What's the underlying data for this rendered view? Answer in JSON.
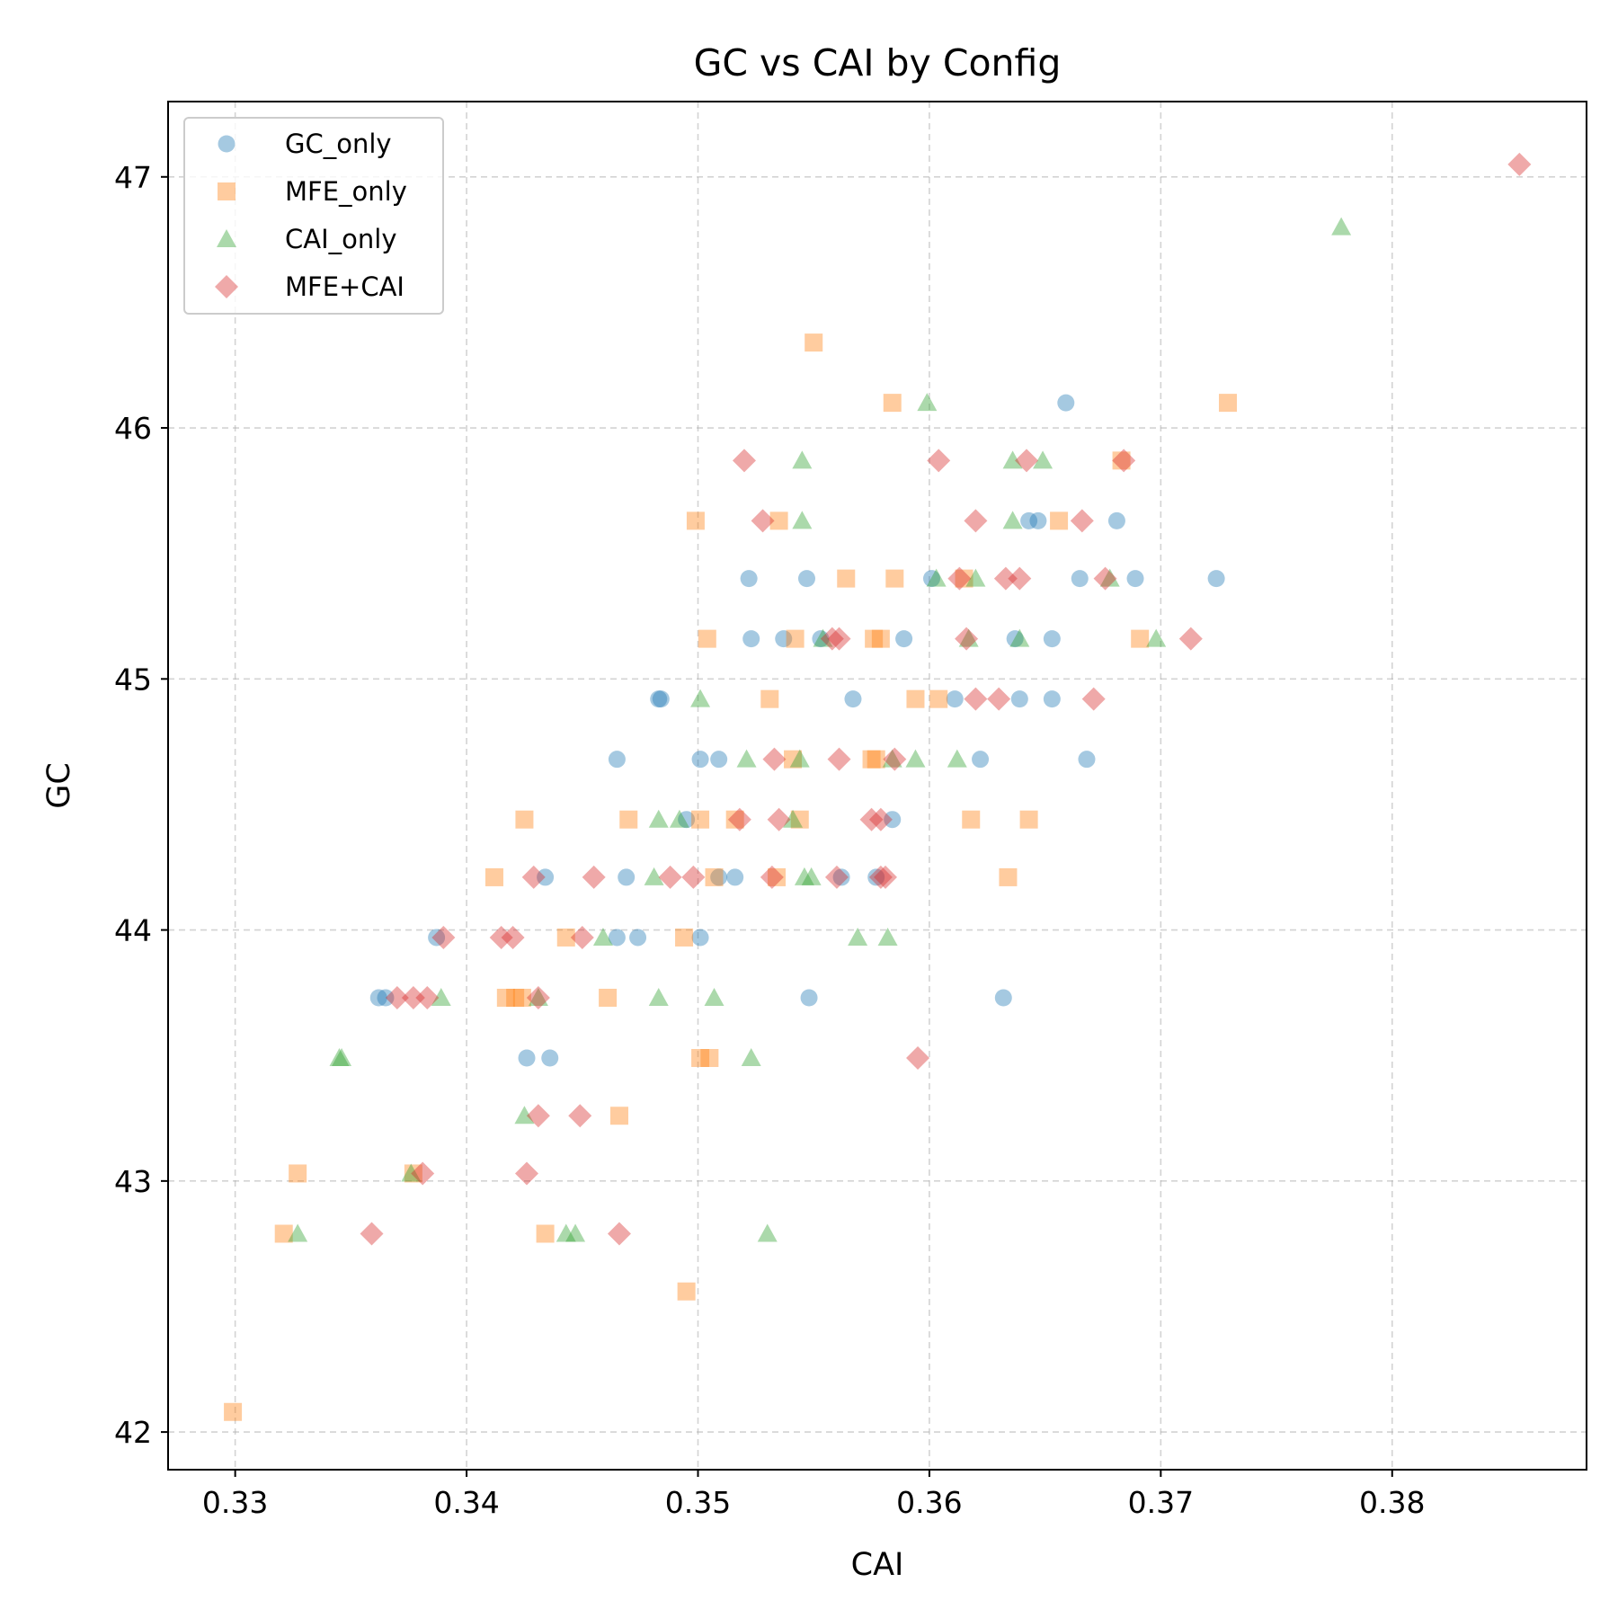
{
  "chart_data": {
    "type": "scatter",
    "title": "GC vs CAI by Config",
    "xlabel": "CAI",
    "ylabel": "GC",
    "xlim": [
      0.3271,
      0.3884
    ],
    "ylim": [
      41.85,
      47.3
    ],
    "xticks": [
      0.33,
      0.34,
      0.35,
      0.36,
      0.37,
      0.38
    ],
    "xtick_labels": [
      "0.33",
      "0.34",
      "0.35",
      "0.36",
      "0.37",
      "0.38"
    ],
    "yticks": [
      42,
      43,
      44,
      45,
      46,
      47
    ],
    "ytick_labels": [
      "42",
      "43",
      "44",
      "45",
      "46",
      "47"
    ],
    "grid": true,
    "legend_position": "top-left",
    "series": [
      {
        "name": "GC_only",
        "marker": "circle",
        "color": "#1f77b4",
        "points": [
          [
            0.3362,
            43.73
          ],
          [
            0.3365,
            43.73
          ],
          [
            0.3387,
            43.97
          ],
          [
            0.3426,
            43.49
          ],
          [
            0.3436,
            43.49
          ],
          [
            0.3434,
            44.21
          ],
          [
            0.3465,
            43.97
          ],
          [
            0.3474,
            43.97
          ],
          [
            0.3469,
            44.21
          ],
          [
            0.3465,
            44.68
          ],
          [
            0.3483,
            44.92
          ],
          [
            0.3484,
            44.92
          ],
          [
            0.3495,
            44.44
          ],
          [
            0.3501,
            43.97
          ],
          [
            0.3501,
            44.68
          ],
          [
            0.3509,
            44.68
          ],
          [
            0.3509,
            44.21
          ],
          [
            0.3516,
            44.21
          ],
          [
            0.3522,
            45.4
          ],
          [
            0.3523,
            45.16
          ],
          [
            0.3537,
            45.16
          ],
          [
            0.3547,
            45.4
          ],
          [
            0.3548,
            43.73
          ],
          [
            0.3553,
            45.16
          ],
          [
            0.3562,
            44.21
          ],
          [
            0.3567,
            44.92
          ],
          [
            0.3577,
            44.21
          ],
          [
            0.3584,
            44.44
          ],
          [
            0.3589,
            45.16
          ],
          [
            0.3601,
            45.4
          ],
          [
            0.3611,
            44.92
          ],
          [
            0.3622,
            44.68
          ],
          [
            0.3632,
            43.73
          ],
          [
            0.3637,
            45.16
          ],
          [
            0.3639,
            44.92
          ],
          [
            0.3643,
            45.63
          ],
          [
            0.3647,
            45.63
          ],
          [
            0.3653,
            45.16
          ],
          [
            0.3653,
            44.92
          ],
          [
            0.3659,
            46.1
          ],
          [
            0.3665,
            45.4
          ],
          [
            0.3668,
            44.68
          ],
          [
            0.3681,
            45.63
          ],
          [
            0.3689,
            45.4
          ],
          [
            0.3724,
            45.4
          ]
        ]
      },
      {
        "name": "MFE_only",
        "marker": "square",
        "color": "#ff7f0e",
        "points": [
          [
            0.3299,
            42.08
          ],
          [
            0.3321,
            42.79
          ],
          [
            0.3327,
            43.03
          ],
          [
            0.3377,
            43.03
          ],
          [
            0.3412,
            44.21
          ],
          [
            0.3417,
            43.73
          ],
          [
            0.3421,
            43.73
          ],
          [
            0.3424,
            43.73
          ],
          [
            0.3425,
            44.44
          ],
          [
            0.3434,
            42.79
          ],
          [
            0.3443,
            43.97
          ],
          [
            0.3461,
            43.73
          ],
          [
            0.3466,
            43.26
          ],
          [
            0.347,
            44.44
          ],
          [
            0.3495,
            42.56
          ],
          [
            0.3494,
            43.97
          ],
          [
            0.3499,
            45.63
          ],
          [
            0.3501,
            44.44
          ],
          [
            0.3501,
            43.49
          ],
          [
            0.3505,
            43.49
          ],
          [
            0.3504,
            45.16
          ],
          [
            0.3507,
            44.21
          ],
          [
            0.3516,
            44.44
          ],
          [
            0.3531,
            44.92
          ],
          [
            0.3535,
            45.63
          ],
          [
            0.3534,
            44.21
          ],
          [
            0.3541,
            44.68
          ],
          [
            0.3542,
            45.16
          ],
          [
            0.3544,
            44.44
          ],
          [
            0.355,
            46.34
          ],
          [
            0.3564,
            45.4
          ],
          [
            0.3575,
            44.68
          ],
          [
            0.3577,
            44.68
          ],
          [
            0.3576,
            45.16
          ],
          [
            0.3579,
            45.16
          ],
          [
            0.3584,
            46.1
          ],
          [
            0.3585,
            45.4
          ],
          [
            0.3594,
            44.92
          ],
          [
            0.3604,
            44.92
          ],
          [
            0.3615,
            45.4
          ],
          [
            0.3618,
            44.44
          ],
          [
            0.3634,
            44.21
          ],
          [
            0.3643,
            44.44
          ],
          [
            0.3656,
            45.63
          ],
          [
            0.3683,
            45.87
          ],
          [
            0.3691,
            45.16
          ],
          [
            0.3729,
            46.1
          ]
        ]
      },
      {
        "name": "CAI_only",
        "marker": "triangle",
        "color": "#2ca02c",
        "points": [
          [
            0.3327,
            42.79
          ],
          [
            0.3345,
            43.49
          ],
          [
            0.3346,
            43.49
          ],
          [
            0.3376,
            43.03
          ],
          [
            0.3389,
            43.73
          ],
          [
            0.3425,
            43.26
          ],
          [
            0.3431,
            43.73
          ],
          [
            0.3443,
            42.79
          ],
          [
            0.3447,
            42.79
          ],
          [
            0.3459,
            43.97
          ],
          [
            0.3481,
            44.21
          ],
          [
            0.3483,
            43.73
          ],
          [
            0.3483,
            44.44
          ],
          [
            0.3492,
            44.44
          ],
          [
            0.3501,
            44.92
          ],
          [
            0.3507,
            43.73
          ],
          [
            0.3521,
            44.68
          ],
          [
            0.3523,
            43.49
          ],
          [
            0.353,
            42.79
          ],
          [
            0.3541,
            44.44
          ],
          [
            0.3544,
            44.68
          ],
          [
            0.3545,
            45.87
          ],
          [
            0.3545,
            45.63
          ],
          [
            0.3546,
            44.21
          ],
          [
            0.3549,
            44.21
          ],
          [
            0.3554,
            45.16
          ],
          [
            0.3569,
            43.97
          ],
          [
            0.3582,
            43.97
          ],
          [
            0.3584,
            44.68
          ],
          [
            0.3594,
            44.68
          ],
          [
            0.3599,
            46.1
          ],
          [
            0.3603,
            45.4
          ],
          [
            0.3612,
            44.68
          ],
          [
            0.3617,
            45.16
          ],
          [
            0.362,
            45.4
          ],
          [
            0.3636,
            45.87
          ],
          [
            0.3636,
            45.63
          ],
          [
            0.3639,
            45.16
          ],
          [
            0.3649,
            45.87
          ],
          [
            0.3678,
            45.4
          ],
          [
            0.3698,
            45.16
          ],
          [
            0.3778,
            46.8
          ]
        ]
      },
      {
        "name": "MFE+CAI",
        "marker": "diamond",
        "color": "#d62728",
        "points": [
          [
            0.3359,
            42.79
          ],
          [
            0.337,
            43.73
          ],
          [
            0.3377,
            43.73
          ],
          [
            0.3381,
            43.03
          ],
          [
            0.3383,
            43.73
          ],
          [
            0.339,
            43.97
          ],
          [
            0.3415,
            43.97
          ],
          [
            0.342,
            43.97
          ],
          [
            0.3426,
            43.03
          ],
          [
            0.3429,
            44.21
          ],
          [
            0.3431,
            43.73
          ],
          [
            0.3431,
            43.26
          ],
          [
            0.3449,
            43.26
          ],
          [
            0.345,
            43.97
          ],
          [
            0.3455,
            44.21
          ],
          [
            0.3466,
            42.79
          ],
          [
            0.3488,
            44.21
          ],
          [
            0.3498,
            44.21
          ],
          [
            0.3518,
            44.44
          ],
          [
            0.352,
            45.87
          ],
          [
            0.3528,
            45.63
          ],
          [
            0.3532,
            44.21
          ],
          [
            0.3533,
            44.68
          ],
          [
            0.3535,
            44.44
          ],
          [
            0.3558,
            45.16
          ],
          [
            0.356,
            44.21
          ],
          [
            0.3561,
            45.16
          ],
          [
            0.3561,
            44.68
          ],
          [
            0.3575,
            44.44
          ],
          [
            0.3579,
            44.44
          ],
          [
            0.3579,
            44.21
          ],
          [
            0.3581,
            44.21
          ],
          [
            0.3585,
            44.68
          ],
          [
            0.3595,
            43.49
          ],
          [
            0.3604,
            45.87
          ],
          [
            0.3613,
            45.4
          ],
          [
            0.3616,
            45.16
          ],
          [
            0.362,
            45.63
          ],
          [
            0.362,
            44.92
          ],
          [
            0.363,
            44.92
          ],
          [
            0.3633,
            45.4
          ],
          [
            0.3639,
            45.4
          ],
          [
            0.3642,
            45.87
          ],
          [
            0.3666,
            45.63
          ],
          [
            0.3671,
            44.92
          ],
          [
            0.3676,
            45.4
          ],
          [
            0.3684,
            45.87
          ],
          [
            0.3713,
            45.16
          ],
          [
            0.3855,
            47.05
          ]
        ]
      }
    ]
  }
}
